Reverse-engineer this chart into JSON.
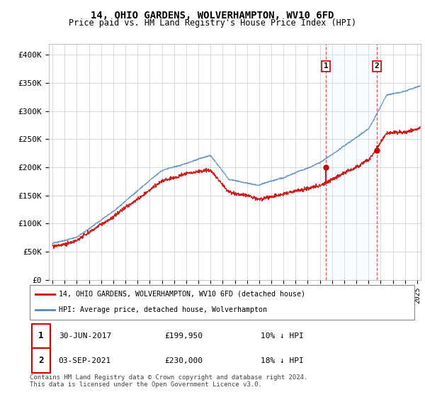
{
  "title": "14, OHIO GARDENS, WOLVERHAMPTON, WV10 6FD",
  "subtitle": "Price paid vs. HM Land Registry's House Price Index (HPI)",
  "legend_line1": "14, OHIO GARDENS, WOLVERHAMPTON, WV10 6FD (detached house)",
  "legend_line2": "HPI: Average price, detached house, Wolverhampton",
  "annotation1_date": "30-JUN-2017",
  "annotation1_price": "£199,950",
  "annotation1_hpi": "10% ↓ HPI",
  "annotation2_date": "03-SEP-2021",
  "annotation2_price": "£230,000",
  "annotation2_hpi": "18% ↓ HPI",
  "footer": "Contains HM Land Registry data © Crown copyright and database right 2024.\nThis data is licensed under the Open Government Licence v3.0.",
  "red_color": "#cc0000",
  "blue_color": "#5588bb",
  "shade_color": "#ddeeff",
  "vline_color": "#dd4444",
  "annotation_box_color": "#cc0000",
  "ylim": [
    0,
    420000
  ],
  "yticks": [
    0,
    50000,
    100000,
    150000,
    200000,
    250000,
    300000,
    350000,
    400000
  ],
  "ytick_labels": [
    "£0",
    "£50K",
    "£100K",
    "£150K",
    "£200K",
    "£250K",
    "£300K",
    "£350K",
    "£400K"
  ],
  "t1": 2017.5,
  "t2": 2021.667,
  "p1": 199950,
  "p2": 230000,
  "xlim_left": 1994.7,
  "xlim_right": 2025.3
}
